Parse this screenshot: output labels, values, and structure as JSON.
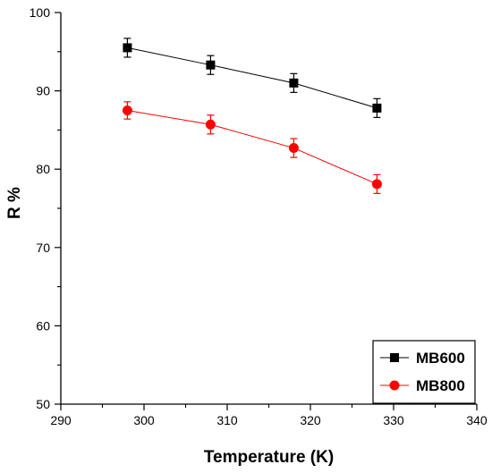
{
  "chart_data": {
    "type": "line",
    "title": "",
    "xlabel": "Temperature (K)",
    "ylabel": "R %",
    "xlim": [
      290,
      340
    ],
    "ylim": [
      50,
      100
    ],
    "x_ticks": [
      "290",
      "300",
      "310",
      "320",
      "330",
      "340"
    ],
    "y_ticks": [
      "50",
      "60",
      "70",
      "80",
      "90",
      "100"
    ],
    "grid": false,
    "legend_position": "bottom-right",
    "series": [
      {
        "name": "MB600",
        "color": "#000000",
        "marker": "square",
        "x": [
          298,
          308,
          318,
          328
        ],
        "y": [
          95.5,
          93.3,
          91.0,
          87.8
        ],
        "error": [
          1.2,
          1.2,
          1.2,
          1.2
        ]
      },
      {
        "name": "MB800",
        "color": "#ff0000",
        "marker": "circle",
        "x": [
          298,
          308,
          318,
          328
        ],
        "y": [
          87.5,
          85.7,
          82.7,
          78.1
        ],
        "error": [
          1.1,
          1.2,
          1.2,
          1.2
        ]
      }
    ]
  }
}
